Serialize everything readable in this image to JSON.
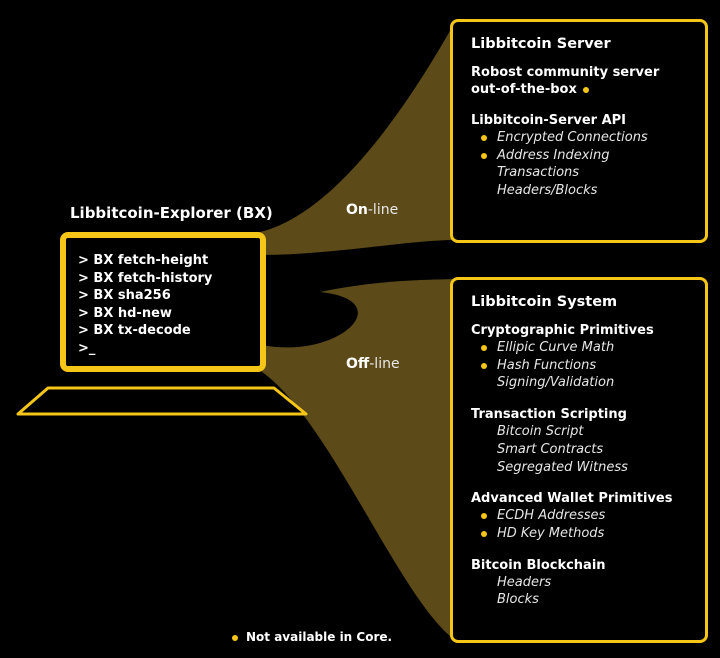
{
  "colors": {
    "accent": "#f5c518",
    "wedge": "#5c4a18",
    "background": "#000000"
  },
  "laptop": {
    "title": "Libbitcoin-Explorer (BX)",
    "lines": [
      "> BX fetch-height",
      "> BX fetch-history",
      "> BX sha256",
      "> BX hd-new",
      "> BX tx-decode",
      ">_"
    ]
  },
  "connections": {
    "online": {
      "bold": "On",
      "rest": "-line"
    },
    "offline": {
      "bold": "Off",
      "rest": "-line"
    }
  },
  "server": {
    "title": "Libbitcoin Server",
    "tagline": [
      "Robost community server",
      "out-of-the-box"
    ],
    "api": {
      "title": "Libbitcoin-Server API",
      "items": [
        {
          "text": "Encrypted Connections",
          "dot": true
        },
        {
          "text": "Address Indexing",
          "dot": true
        },
        {
          "text": "Transactions",
          "dot": false
        },
        {
          "text": "Headers/Blocks",
          "dot": false
        }
      ]
    }
  },
  "system": {
    "title": "Libbitcoin System",
    "sections": [
      {
        "title": "Cryptographic Primitives",
        "items": [
          {
            "text": "Ellipic Curve Math",
            "dot": true
          },
          {
            "text": "Hash Functions",
            "dot": true
          },
          {
            "text": "Signing/Validation",
            "dot": false
          }
        ]
      },
      {
        "title": "Transaction Scripting",
        "items": [
          {
            "text": "Bitcoin Script",
            "dot": false
          },
          {
            "text": "Smart Contracts",
            "dot": false
          },
          {
            "text": "Segregated Witness",
            "dot": false
          }
        ]
      },
      {
        "title": "Advanced Wallet Primitives",
        "items": [
          {
            "text": "ECDH Addresses",
            "dot": true
          },
          {
            "text": "HD Key Methods",
            "dot": true
          }
        ]
      },
      {
        "title": "Bitcoin Blockchain",
        "items": [
          {
            "text": "Headers",
            "dot": false
          },
          {
            "text": "Blocks",
            "dot": false
          }
        ]
      }
    ]
  },
  "footnote": "Not available in Core."
}
